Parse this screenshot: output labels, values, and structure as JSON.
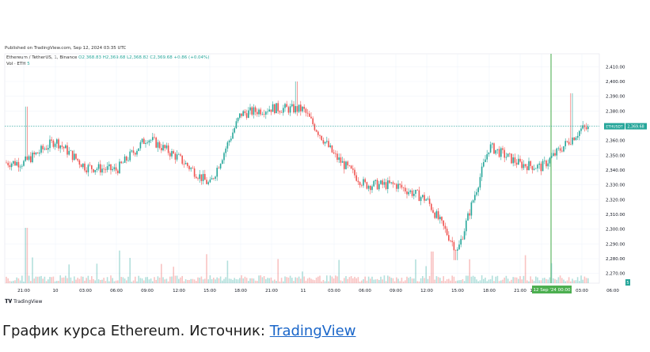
{
  "published": "Published on TradingView.com, Sep 12, 2024 03:35 UTC",
  "legend": {
    "symbol": "Ethereum / TetherUS, 1, Binance",
    "ohlc": "O2,368.83  H2,369.68  L2,368.82  C2,369.68  +0.86 (+0.04%)",
    "vol_label": "Vol · ETH",
    "vol_value": "5"
  },
  "logo_text": "TradingView",
  "caption": {
    "prefix": "График курса Ethereum. Источник: ",
    "link": "TradingView"
  },
  "chart_data": {
    "type": "candlestick",
    "symbol": "Ethereum / TetherUS, 1, Binance",
    "ylim": [
      2265,
      2415
    ],
    "y_ticks": [
      "2,410.00",
      "2,400.00",
      "2,390.00",
      "2,380.00",
      "2,370.00",
      "2,360.00",
      "2,350.00",
      "2,340.00",
      "2,330.00",
      "2,320.00",
      "2,310.00",
      "2,300.00",
      "2,290.00",
      "2,280.00",
      "2,270.00"
    ],
    "x_ticks": [
      "21:00",
      "10",
      "03:00",
      "06:00",
      "09:00",
      "12:00",
      "15:00",
      "18:00",
      "21:00",
      "11",
      "03:00",
      "06:00",
      "09:00",
      "12:00",
      "15:00",
      "18:00",
      "21:00",
      "12 Sep '24",
      "03:00",
      "06:00"
    ],
    "price_path": [
      [
        "21:00",
        2345
      ],
      [
        "10",
        2360
      ],
      [
        "03:00",
        2342
      ],
      [
        "06:00",
        2340
      ],
      [
        "09:00",
        2362
      ],
      [
        "12:00",
        2348
      ],
      [
        "15:00",
        2330
      ],
      [
        "18:00",
        2378
      ],
      [
        "21:00",
        2382
      ],
      [
        "11",
        2381
      ],
      [
        "03:00",
        2350
      ],
      [
        "06:00",
        2330
      ],
      [
        "09:00",
        2330
      ],
      [
        "12:00",
        2320
      ],
      [
        "15:00",
        2285
      ],
      [
        "18:00",
        2356
      ],
      [
        "21:00",
        2344
      ],
      [
        "12 Sep '24",
        2342
      ],
      [
        "03:00",
        2368
      ]
    ],
    "last_price": "2,369.68",
    "last_price_tag": "ETHUSDT",
    "volume_tag": "5",
    "highlight_time": "12 Sep '24  00:00",
    "colors": {
      "up": "#26a69a",
      "down": "#ef5350",
      "highlight": "#4caf50",
      "grid": "#f0f3fa"
    }
  }
}
